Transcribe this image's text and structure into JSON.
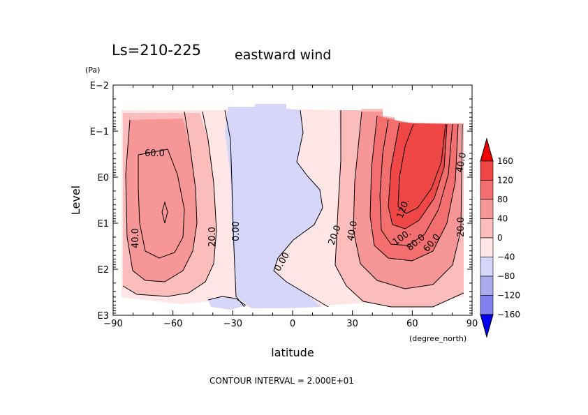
{
  "chart_data": {
    "type": "heatmap",
    "title_main": "Ls=210-225",
    "title_var": "eastward wind",
    "xlabel": "latitude",
    "x_unit": "(degree_north)",
    "ylabel": "Level",
    "y_unit": "(Pa)",
    "xlim": [
      -90,
      90
    ],
    "x_ticks": [
      "−90",
      "−60",
      "−30",
      "0",
      "30",
      "60",
      "90"
    ],
    "y_scale": "log",
    "ylim": [
      0.01,
      1000
    ],
    "y_ticks": [
      "E−2",
      "E−1",
      "E0",
      "E1",
      "E2",
      "E3"
    ],
    "footer": "CONTOUR INTERVAL = 2.000E+01",
    "contour_interval": 20,
    "colorbar": {
      "levels": [
        -160,
        -120,
        -80,
        -40,
        0,
        40,
        80,
        120,
        160
      ],
      "tick_labels": [
        "160",
        "120",
        "80",
        "40",
        "0",
        "−40",
        "−80",
        "−120",
        "−160"
      ],
      "colors": [
        "#0000ee",
        "#2a2aee",
        "#5656ee",
        "#8080ee",
        "#aaaaee",
        "#d6d6fb",
        "#ffe6e6",
        "#fbbcbc",
        "#f79696",
        "#f36e6e",
        "#ef4646",
        "#ee0000"
      ]
    },
    "contour_labels": [
      "60.0",
      "40.0",
      "20.0",
      "0.00",
      "0.00",
      "20.0",
      "40.0",
      "120.",
      "100.",
      "80.0",
      "60.0",
      "40.0",
      "20.0"
    ],
    "features": [
      {
        "kind": "westerly-jet",
        "lat": -64,
        "log10_p": 0.8,
        "max": 80
      },
      {
        "kind": "westerly-jet",
        "lat": 63,
        "log10_p": 0.3,
        "max": 140
      },
      {
        "kind": "easterly-band",
        "lat": -10,
        "max": -20
      }
    ]
  }
}
